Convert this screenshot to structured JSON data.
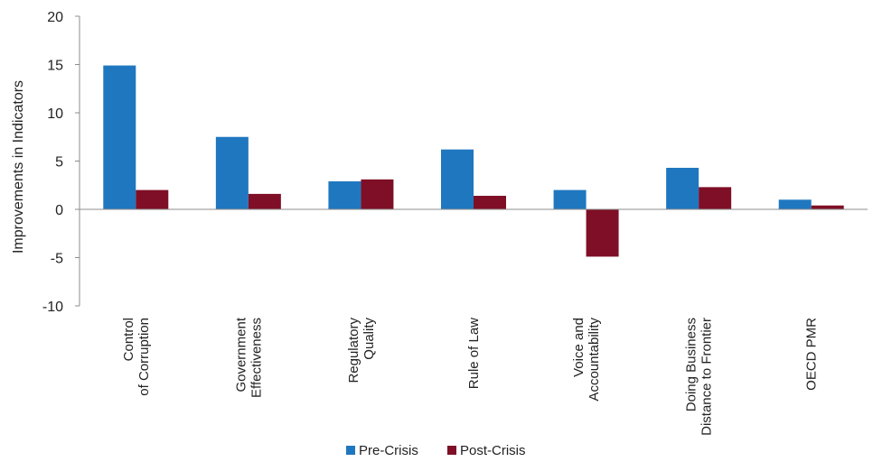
{
  "chart_data": {
    "type": "bar",
    "title": "",
    "xlabel": "",
    "ylabel": "Improvements in Indicators",
    "ylim": [
      -10,
      20
    ],
    "yticks": [
      20,
      15,
      10,
      5,
      0,
      -5,
      -10
    ],
    "grid": false,
    "legend_position": "bottom",
    "categories": [
      [
        "Control",
        "of Corruption"
      ],
      [
        "Government",
        "Effectiveness"
      ],
      [
        "Regulatory",
        "Quality"
      ],
      [
        "Rule of Law"
      ],
      [
        "Voice and",
        "Accountability"
      ],
      [
        "Doing Business",
        "Distance to Frontier"
      ],
      [
        "OECD PMR"
      ]
    ],
    "series": [
      {
        "name": "Pre-Crisis",
        "color": "#1f77c0",
        "values": [
          14.9,
          7.5,
          2.9,
          6.2,
          2.0,
          4.3,
          1.0
        ]
      },
      {
        "name": "Post-Crisis",
        "color": "#7f0f26",
        "values": [
          2.0,
          1.6,
          3.1,
          1.4,
          -4.9,
          2.3,
          0.4
        ]
      }
    ]
  }
}
